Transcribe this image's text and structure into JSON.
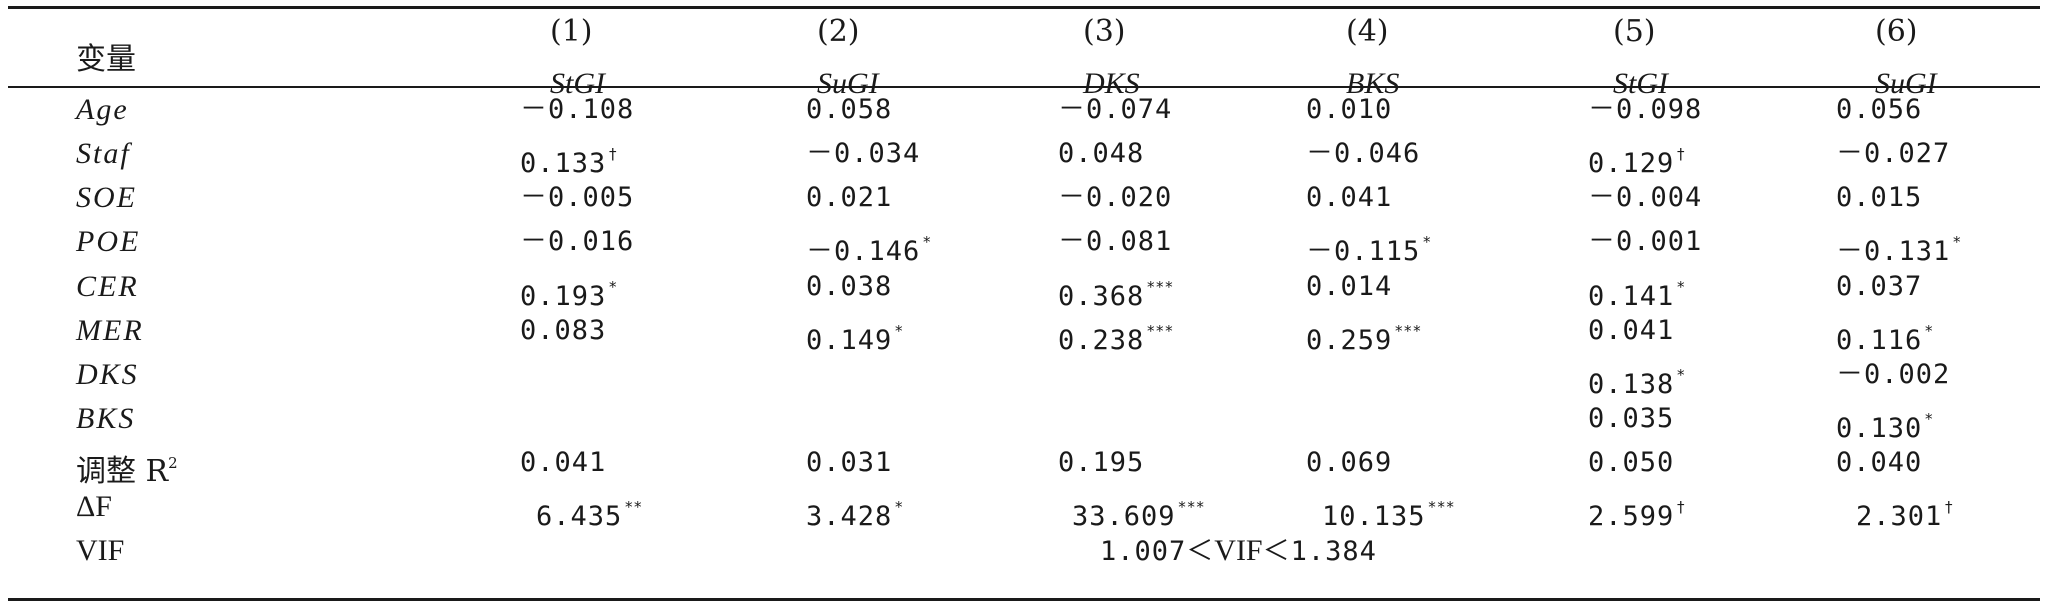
{
  "table": {
    "variable_header": "变量",
    "columns": [
      {
        "num": "(1)",
        "name": "StGI"
      },
      {
        "num": "(2)",
        "name": "SuGI"
      },
      {
        "num": "(3)",
        "name": "DKS"
      },
      {
        "num": "(4)",
        "name": "BKS"
      },
      {
        "num": "(5)",
        "name": "StGI"
      },
      {
        "num": "(6)",
        "name": "SuGI"
      }
    ],
    "rows": [
      {
        "label": "Age",
        "cells": [
          {
            "v": "－0.108",
            "s": ""
          },
          {
            "v": "0.058",
            "s": ""
          },
          {
            "v": "－0.074",
            "s": ""
          },
          {
            "v": "0.010",
            "s": ""
          },
          {
            "v": "－0.098",
            "s": ""
          },
          {
            "v": "0.056",
            "s": ""
          }
        ]
      },
      {
        "label": "Staf",
        "cells": [
          {
            "v": "0.133",
            "s": "†"
          },
          {
            "v": "－0.034",
            "s": ""
          },
          {
            "v": "0.048",
            "s": ""
          },
          {
            "v": "－0.046",
            "s": ""
          },
          {
            "v": "0.129",
            "s": "†"
          },
          {
            "v": "－0.027",
            "s": ""
          }
        ]
      },
      {
        "label": "SOE",
        "cells": [
          {
            "v": "－0.005",
            "s": ""
          },
          {
            "v": "0.021",
            "s": ""
          },
          {
            "v": "－0.020",
            "s": ""
          },
          {
            "v": "0.041",
            "s": ""
          },
          {
            "v": "－0.004",
            "s": ""
          },
          {
            "v": "0.015",
            "s": ""
          }
        ]
      },
      {
        "label": "POE",
        "cells": [
          {
            "v": "－0.016",
            "s": ""
          },
          {
            "v": "－0.146",
            "s": "*"
          },
          {
            "v": "－0.081",
            "s": ""
          },
          {
            "v": "－0.115",
            "s": "*"
          },
          {
            "v": "－0.001",
            "s": ""
          },
          {
            "v": "－0.131",
            "s": "*"
          }
        ]
      },
      {
        "label": "CER",
        "cells": [
          {
            "v": "0.193",
            "s": "*"
          },
          {
            "v": "0.038",
            "s": ""
          },
          {
            "v": "0.368",
            "s": "***"
          },
          {
            "v": "0.014",
            "s": ""
          },
          {
            "v": "0.141",
            "s": "*"
          },
          {
            "v": "0.037",
            "s": ""
          }
        ]
      },
      {
        "label": "MER",
        "cells": [
          {
            "v": "0.083",
            "s": ""
          },
          {
            "v": "0.149",
            "s": "*"
          },
          {
            "v": "0.238",
            "s": "***"
          },
          {
            "v": "0.259",
            "s": "***"
          },
          {
            "v": "0.041",
            "s": ""
          },
          {
            "v": "0.116",
            "s": "*"
          }
        ]
      },
      {
        "label": "DKS",
        "cells": [
          {
            "v": "",
            "s": ""
          },
          {
            "v": "",
            "s": ""
          },
          {
            "v": "",
            "s": ""
          },
          {
            "v": "",
            "s": ""
          },
          {
            "v": "0.138",
            "s": "*"
          },
          {
            "v": "－0.002",
            "s": ""
          }
        ]
      },
      {
        "label": "BKS",
        "cells": [
          {
            "v": "",
            "s": ""
          },
          {
            "v": "",
            "s": ""
          },
          {
            "v": "",
            "s": ""
          },
          {
            "v": "",
            "s": ""
          },
          {
            "v": "0.035",
            "s": ""
          },
          {
            "v": "0.130",
            "s": "*"
          }
        ]
      }
    ],
    "adj_r2": {
      "label": "调整 R",
      "sup": "2",
      "values": [
        "0.041",
        "0.031",
        "0.195",
        "0.069",
        "0.050",
        "0.040"
      ]
    },
    "delta_f": {
      "label": "ΔF",
      "cells": [
        {
          "v": "6.435",
          "s": "**"
        },
        {
          "v": "3.428",
          "s": "*"
        },
        {
          "v": "33.609",
          "s": "***"
        },
        {
          "v": "10.135",
          "s": "***"
        },
        {
          "v": "2.599",
          "s": "†"
        },
        {
          "v": "2.301",
          "s": "†"
        }
      ]
    },
    "vif": {
      "label": "VIF",
      "value_left": "1.007＜",
      "value_mid": "VIF",
      "value_right": "＜1.384"
    }
  }
}
